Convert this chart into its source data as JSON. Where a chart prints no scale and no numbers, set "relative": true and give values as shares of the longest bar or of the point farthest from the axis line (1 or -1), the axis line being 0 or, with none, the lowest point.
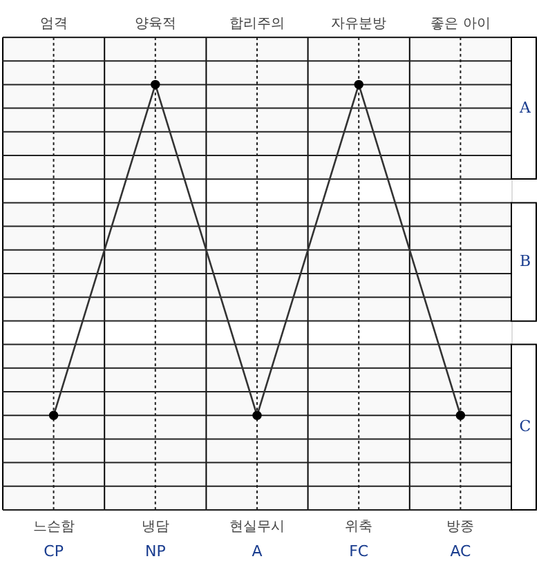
{
  "chart_data": {
    "type": "line",
    "relative": true,
    "categories": [
      "CP",
      "NP",
      "A",
      "FC",
      "AC"
    ],
    "series": [
      {
        "color": "#333333",
        "values": [
          0.222,
          1,
          0.222,
          1,
          0.222
        ]
      }
    ],
    "marker": "circle",
    "line_style": "solid",
    "grid": true,
    "bands": [
      {
        "axis": "y",
        "from": 0.778,
        "to": 1.111,
        "label": "A"
      },
      {
        "axis": "y",
        "from": 0.444,
        "to": 0.722,
        "label": "B"
      },
      {
        "axis": "y",
        "from": 0,
        "to": 0.389,
        "label": "C"
      }
    ],
    "annotations": [
      "엄격",
      "양육적",
      "합리주의",
      "자유분방",
      "좋은 아이",
      "느슨함",
      "냉담",
      "현실무시",
      "위축",
      "방종"
    ]
  }
}
